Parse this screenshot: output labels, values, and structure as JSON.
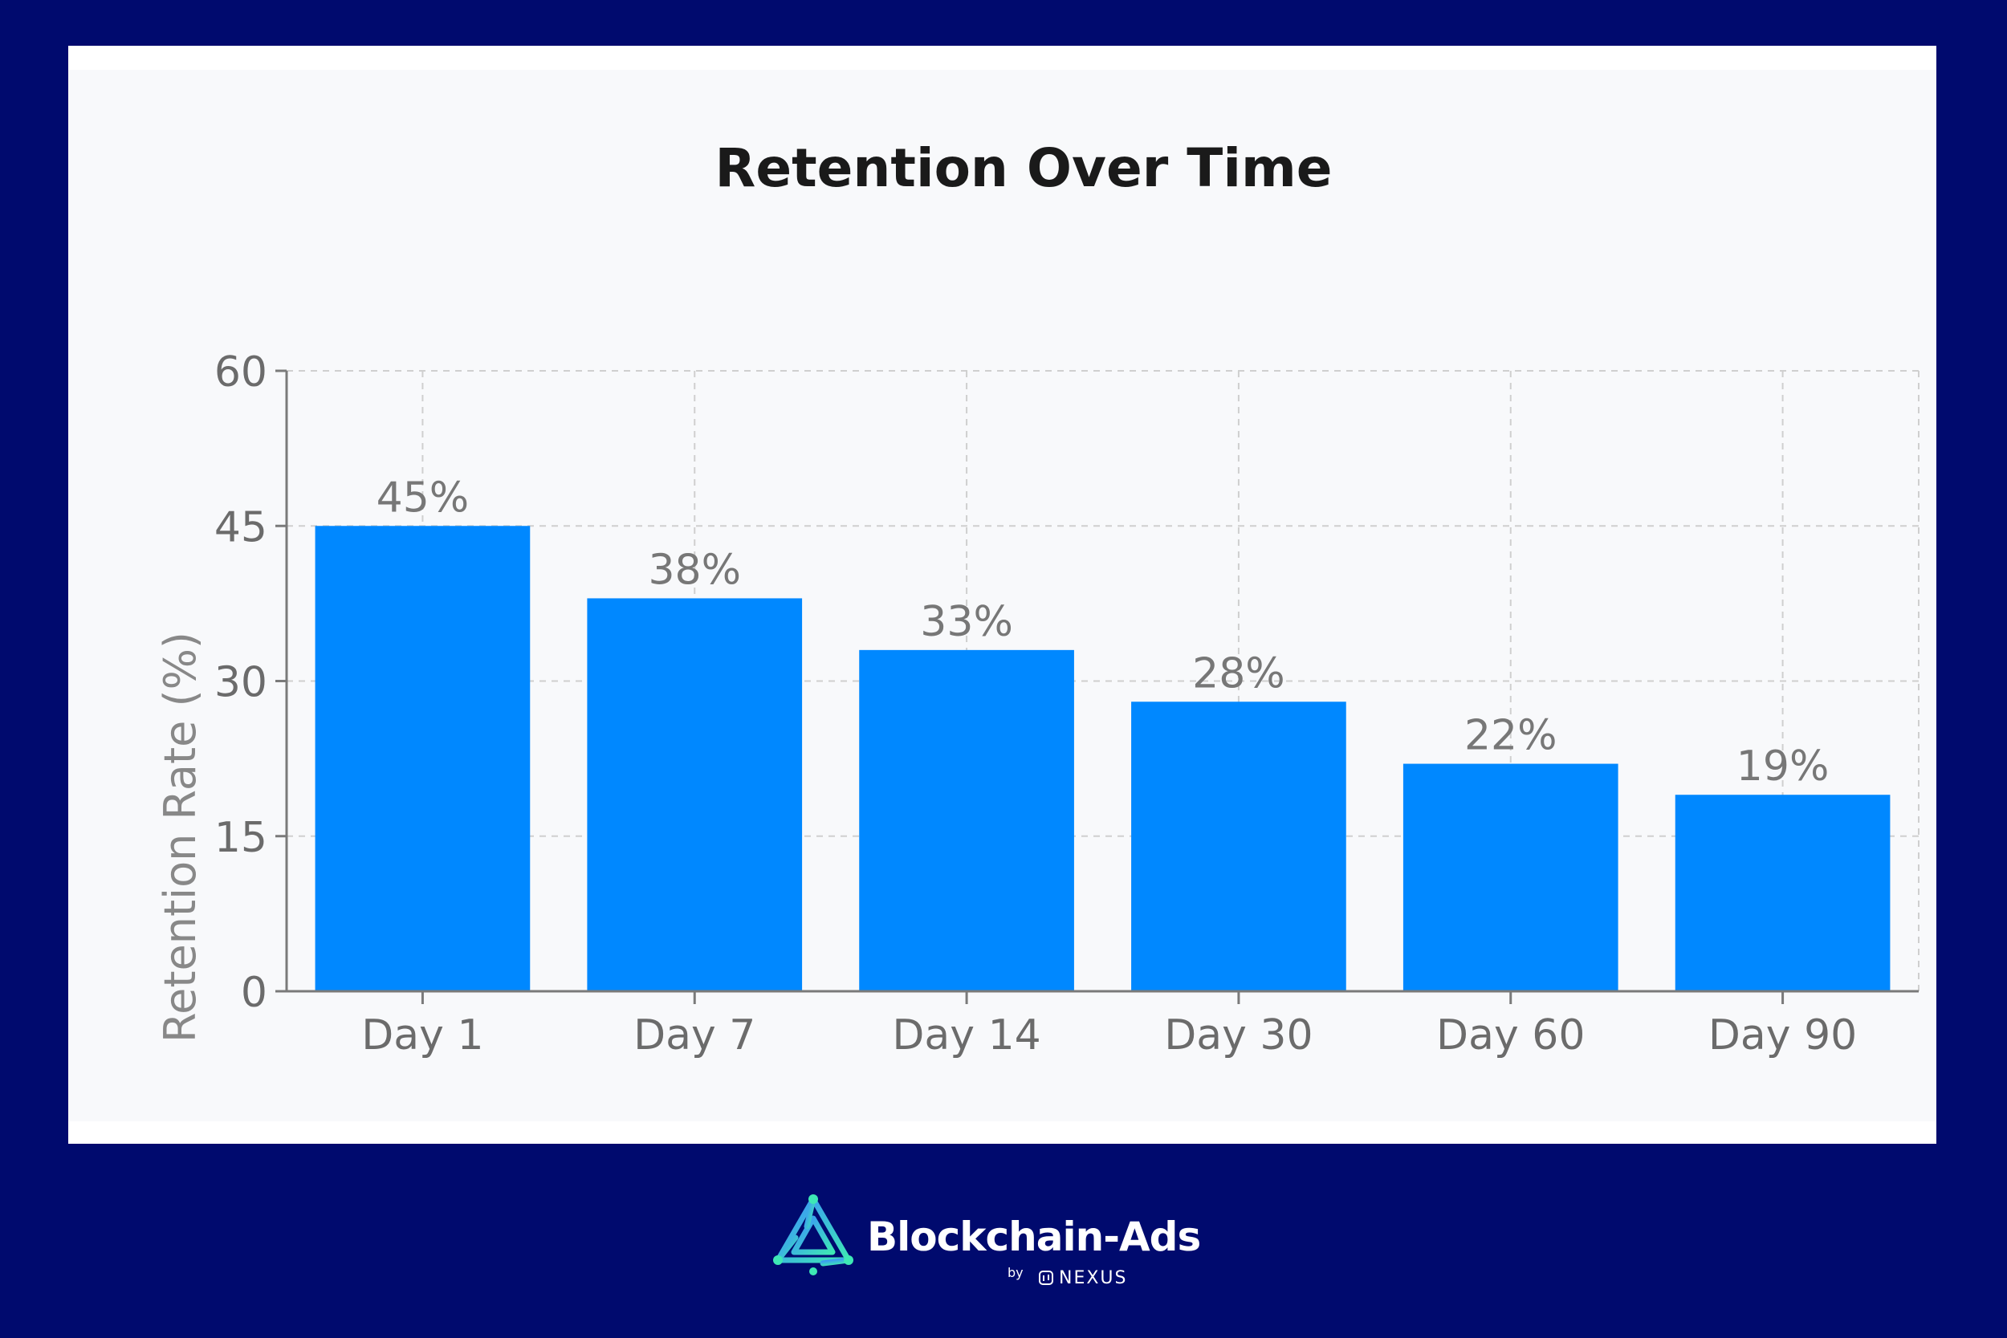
{
  "colors": {
    "page_background": "#000a6e",
    "card_background": "#ffffff",
    "plot_background": "#f8f9fb",
    "bar": "#0088ff",
    "gridline": "#cfcfcf",
    "axis": "#7a7a7a",
    "brand_accent": "#3ee8b5"
  },
  "chart_data": {
    "type": "bar",
    "title": "Retention Over Time",
    "xlabel": "",
    "ylabel": "Retention Rate (%)",
    "categories": [
      "Day 1",
      "Day 7",
      "Day 14",
      "Day 30",
      "Day 60",
      "Day 90"
    ],
    "values": [
      45,
      38,
      33,
      28,
      22,
      19
    ],
    "data_labels": [
      "45%",
      "38%",
      "33%",
      "28%",
      "22%",
      "19%"
    ],
    "ylim": [
      0,
      60
    ],
    "yticks": [
      0,
      15,
      30,
      45,
      60
    ],
    "grid": true,
    "grid_style": "dashed"
  },
  "brand": {
    "name": "Blockchain-Ads",
    "by": "by",
    "sub": "NEXUS",
    "logo_icon": "blockchain-ads-logo-icon",
    "sub_icon": "nexus-logo-icon"
  }
}
